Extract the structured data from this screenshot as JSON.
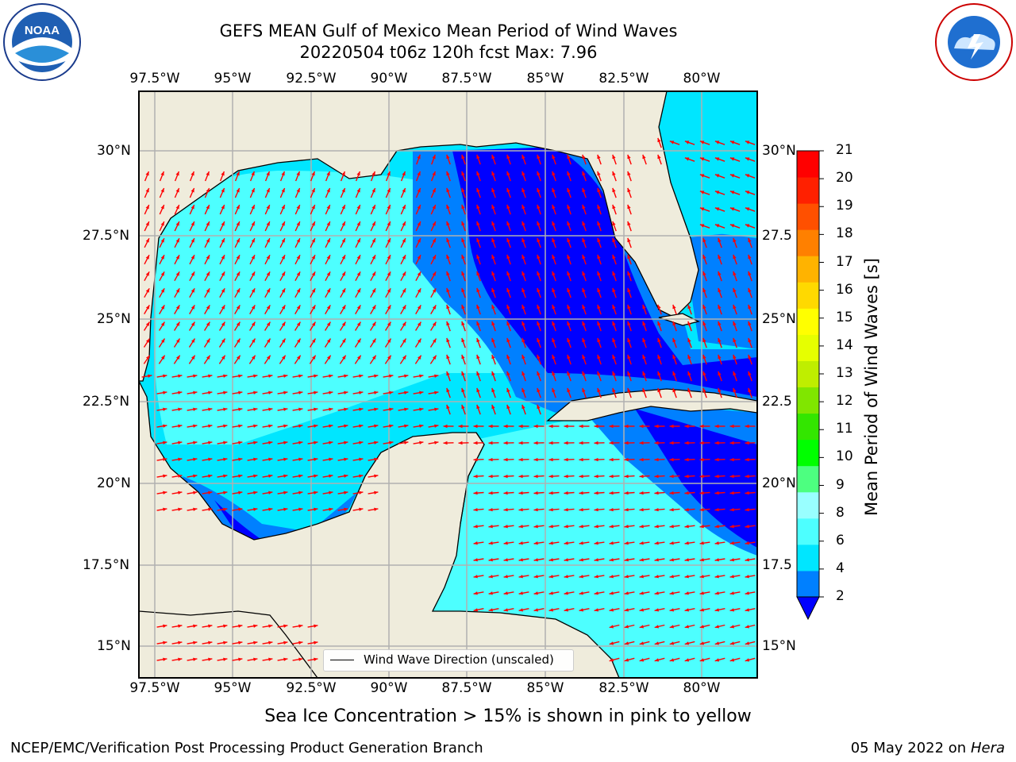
{
  "header": {
    "title_line1": "GEFS MEAN Gulf of Mexico Mean Period of Wind Waves",
    "title_line2": "20220504 t06z 120h fcst   Max: 7.96"
  },
  "logos": {
    "left_org": "NOAA",
    "right_org": "NATIONAL WEATHER SERVICE"
  },
  "map": {
    "lon_ticks": [
      "97.5°W",
      "95°W",
      "92.5°W",
      "90°W",
      "87.5°W",
      "85°W",
      "82.5°W",
      "80°W"
    ],
    "lat_ticks_left": [
      "30°N",
      "27.5°N",
      "25°N",
      "22.5°N",
      "20°N",
      "17.5°N",
      "15°N"
    ],
    "lat_ticks_right": [
      "30°N",
      "27.5",
      "25°N",
      "22.5",
      "20°N",
      "17.5",
      "15°N"
    ],
    "legend_label": "Wind Wave Direction (unscaled)",
    "land_color": "#efecdc",
    "arrow_color": "#ff0000"
  },
  "colorbar": {
    "label": "Mean Period of Wind Waves [s]",
    "ticks": [
      "21",
      "20",
      "19",
      "18",
      "17",
      "16",
      "15",
      "14",
      "13",
      "12",
      "11",
      "10",
      "9",
      "8",
      "6",
      "4",
      "2"
    ],
    "colors": [
      "#0000ff",
      "#0080ff",
      "#00e6ff",
      "#4dffff",
      "#99ffff",
      "#4dff80",
      "#00ff00",
      "#33e600",
      "#80e600",
      "#bfee00",
      "#e6ff00",
      "#ffff00",
      "#ffd900",
      "#ffb300",
      "#ff8000",
      "#ff5000",
      "#ff2000",
      "#ff0000"
    ]
  },
  "note": "Sea Ice Concentration > 15% is shown in pink to yellow",
  "footer": {
    "left": "NCEP/EMC/Verification Post Processing Product Generation Branch",
    "right_date": "05 May 2022 on",
    "right_host": "Hera"
  }
}
